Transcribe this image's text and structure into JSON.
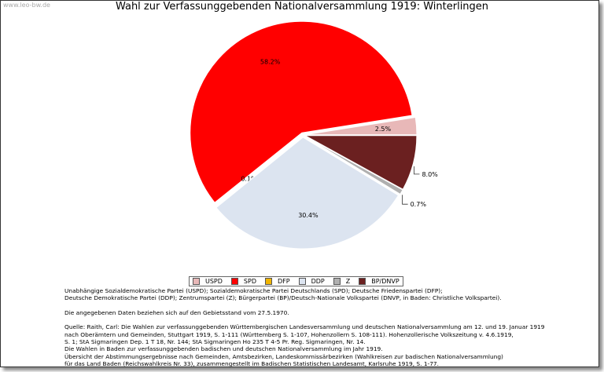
{
  "watermark": "www.leo-bw.de",
  "chart_data": {
    "type": "pie",
    "title": "Wahl zur Verfassunggebenden Nationalversammlung 1919: Winterlingen",
    "categories": [
      "USPD",
      "SPD",
      "DFP",
      "DDP",
      "Z",
      "BP/DNVP"
    ],
    "values": [
      2.5,
      58.2,
      0.1,
      30.4,
      0.7,
      8.0
    ],
    "labels": [
      "2.5%",
      "58.2%",
      "0.1%",
      "30.4%",
      "0.7%",
      "8.0%"
    ],
    "colors": [
      "#e8b8b8",
      "#ff0000",
      "#f0b400",
      "#dce4f0",
      "#b0b0b0",
      "#6b2020"
    ],
    "legend": "bottom"
  },
  "notes": [
    "Unabhängige Sozialdemokratische Partei (USPD); Sozialdemokratische Partei Deutschlands (SPD); Deutsche Friedenspartei (DFP);",
    "Deutsche Demokratische Partei (DDP); Zentrumspartei (Z); Bürgerpartei (BP)/Deutsch-Nationale Volkspartei (DNVP, in Baden: Christliche Volkspartei).",
    "",
    "Die angegebenen Daten beziehen sich auf den Gebietsstand vom 27.5.1970.",
    "",
    "Quelle: Raith, Carl: Die Wahlen zur verfassunggebenden Württembergischen Landesversammlung und deutschen Nationalversammlung am 12. und 19. Januar 1919",
    "nach Oberämtern und Gemeinden, Stuttgart 1919, S. 1-111 (Württemberg S. 1-107, Hohenzollern S. 108-111). Hohenzollerische Volkszeitung v. 4.6.1919,",
    "S. 1; StA Sigmaringen Dep. 1 T 18, Nr. 144; StA Sigmaringen Ho 235 T 4-5 Pr. Reg. Sigmaringen, Nr. 14.",
    "Die Wahlen in Baden zur verfassunggebenden badischen und deutschen Nationalversammlung im Jahr 1919.",
    "Übersicht der Abstimmungsergebnisse nach Gemeinden, Amtsbezirken, Landeskommissärbezirken (Wahlkreisen zur badischen Nationalversammlung)",
    "für das Land Baden (Reichswahlkreis Nr. 33), zusammengestellt im Badischen Statistischen Landesamt, Karlsruhe 1919, S. 1-77."
  ]
}
